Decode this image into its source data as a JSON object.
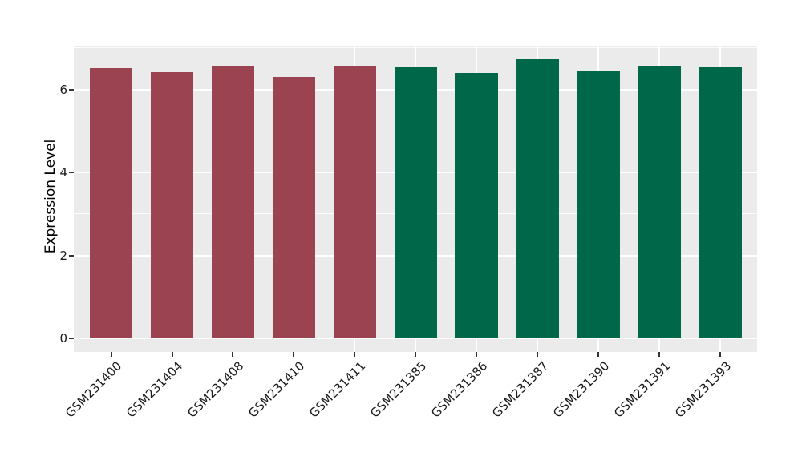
{
  "chart_data": {
    "type": "bar",
    "title": "",
    "xlabel": "",
    "ylabel": "Expression Level",
    "categories": [
      "GSM231400",
      "GSM231404",
      "GSM231408",
      "GSM231410",
      "GSM231411",
      "GSM231385",
      "GSM231386",
      "GSM231387",
      "GSM231390",
      "GSM231391",
      "GSM231393"
    ],
    "values": [
      6.52,
      6.42,
      6.57,
      6.3,
      6.57,
      6.56,
      6.4,
      6.75,
      6.44,
      6.58,
      6.54
    ],
    "groups": [
      "red",
      "red",
      "red",
      "red",
      "red",
      "green",
      "green",
      "green",
      "green",
      "green",
      "green"
    ],
    "yticks": [
      0,
      2,
      4,
      6
    ],
    "yticks_minor": [
      1,
      3,
      5,
      7
    ],
    "ylim": [
      -0.34,
      7.06
    ],
    "grid": "on",
    "legend": "none",
    "colors": {
      "bar_red": "#9B4350",
      "bar_green": "#006848",
      "panel_background": "#EBEBEB",
      "gridline": "#FFFFFF",
      "tick_mark": "#333333",
      "tick_text": "#1A1A1A",
      "axis_title_text": "#000000"
    }
  }
}
